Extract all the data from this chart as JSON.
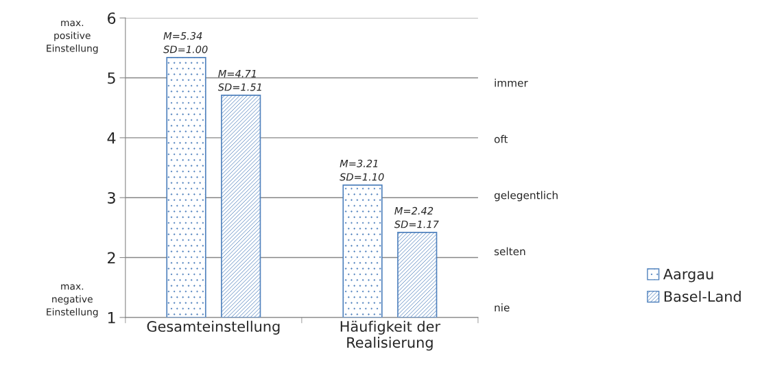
{
  "chart_data": {
    "type": "bar",
    "categories": [
      "Gesamteinstellung",
      "Häufigkeit der\nRealisierung"
    ],
    "series": [
      {
        "name": "Aargau",
        "color": "#4f81bd",
        "values": [
          5.34,
          3.21
        ],
        "value_labels": [
          "M=5.34\nSD=1.00",
          "M=3.21\nSD=1.10"
        ]
      },
      {
        "name": "Basel-Land",
        "color": "#4f81bd",
        "values": [
          4.71,
          2.42
        ],
        "value_labels": [
          "M=4.71\nSD=1.51",
          "M=2.42\nSD=1.17"
        ]
      }
    ],
    "ylim": [
      1,
      6
    ],
    "yticks": [
      1,
      2,
      3,
      4,
      5,
      6
    ],
    "grid": "y",
    "legend": "right",
    "annotations": [
      "max.\npositive\nEinstellung",
      "max.\nnegative\nEinstellung",
      "immer",
      "oft",
      "gelegentlich",
      "selten",
      "nie"
    ]
  }
}
